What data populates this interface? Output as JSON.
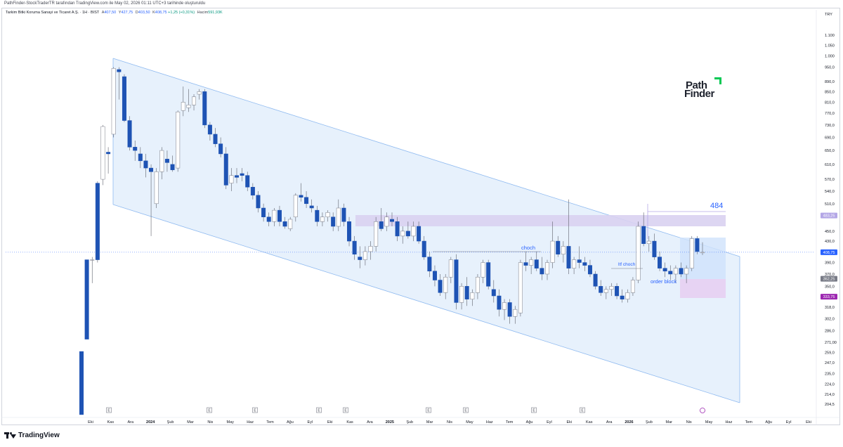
{
  "header": {
    "attribution": "PathFinder-StockTraderTR tarafından TradingView.com ile May 02, 2026 01:11 UTC+3 tarihinde oluşturuldu"
  },
  "legend": {
    "title": "Tarkim Bitki Koruma Sanayi ve Ticaret A.Ş. · 1H · BIST",
    "o_label": "A",
    "o": "407,50",
    "h_label": "Y",
    "h": "427,75",
    "l_label": "D",
    "l": "403,50",
    "c_label": "K",
    "c": "408,75",
    "change": "+1,25 (+0,31%)",
    "vol_label": "Hacim",
    "vol": "591,93K"
  },
  "currency": "TRY",
  "branding": {
    "name": "TradingView",
    "watermark_line1": "Path",
    "watermark_line2": "Finder"
  },
  "colors": {
    "candle_up": "#ffffff",
    "candle_down": "#1e53b4",
    "wick": "#5d606b",
    "channel_fill": "#e3eefb",
    "channel_line": "#8fbaf0",
    "zone_fill": "#d9d1f1",
    "order_block_fill": "#e7d3f3",
    "last_price_badge": "#2962ff",
    "low_badge": "#9c27b0",
    "grey_badge": "#787b86",
    "logo_accent": "#00c853"
  },
  "chart_data": {
    "type": "candlestick",
    "title": "Tarkim Bitki Koruma Sanayi ve Ticaret A.Ş. · 1H · BIST",
    "y_scale": "log",
    "ylim": [
      200,
      1150
    ],
    "y_ticks": [
      "1.100",
      "1.050",
      "1.000",
      "950,0",
      "890,0",
      "850,0",
      "810,0",
      "770,0",
      "730,0",
      "690,0",
      "650,0",
      "610,0",
      "570,0",
      "540,0",
      "510,0",
      "483,25",
      "450,0",
      "430,0",
      "408,75",
      "390,0",
      "370,0",
      "362,25",
      "350,0",
      "333,75",
      "318,0",
      "302,0",
      "286,0",
      "271,00",
      "259,0",
      "247,0",
      "235,0",
      "224,0",
      "214,0",
      "204,5"
    ],
    "x_ticks": [
      "Eki",
      "Kas",
      "Ara",
      "2024",
      "Şub",
      "Mar",
      "Nis",
      "May",
      "Haz",
      "Tem",
      "Ağu",
      "Eyl",
      "Eki",
      "Kas",
      "Ara",
      "2025",
      "Şub",
      "Mar",
      "Nis",
      "May",
      "Haz",
      "Tem",
      "Ağu",
      "Eyl",
      "Eki",
      "Kas",
      "Ara",
      "2026",
      "Şub",
      "Mar",
      "Nis",
      "May",
      "Haz",
      "Tem",
      "Ağu",
      "Eyl",
      "Eki"
    ],
    "bold_x_ticks": [
      "2024",
      "2025",
      "2026"
    ],
    "earnings_markers": [
      "Kas",
      "Mar",
      "Haz",
      "Eyl",
      "Kas",
      "Mar",
      "May",
      "Ağu",
      "Eki"
    ],
    "price_labels": [
      {
        "value": 483.25,
        "text": "483,25",
        "color": "#b4a7e6"
      },
      {
        "value": 408.75,
        "text": "408,75",
        "color": "#2962ff"
      },
      {
        "value": 362.25,
        "text": "362,25",
        "color": "#787b86"
      },
      {
        "value": 333.75,
        "text": "333,75",
        "color": "#9c27b0"
      }
    ],
    "candles": [
      {
        "o": 260,
        "h": 260,
        "l": 195,
        "c": 195
      },
      {
        "o": 395,
        "h": 395,
        "l": 275,
        "c": 275
      },
      {
        "o": 395,
        "h": 400,
        "l": 355,
        "c": 395
      },
      {
        "o": 560,
        "h": 565,
        "l": 390,
        "c": 395
      },
      {
        "o": 570,
        "h": 730,
        "l": 555,
        "c": 725
      },
      {
        "o": 645,
        "h": 660,
        "l": 585,
        "c": 640
      },
      {
        "o": 700,
        "h": 950,
        "l": 690,
        "c": 945
      },
      {
        "o": 940,
        "h": 950,
        "l": 820,
        "c": 930
      },
      {
        "o": 910,
        "h": 920,
        "l": 740,
        "c": 745
      },
      {
        "o": 745,
        "h": 760,
        "l": 650,
        "c": 660
      },
      {
        "o": 660,
        "h": 680,
        "l": 620,
        "c": 650
      },
      {
        "o": 640,
        "h": 660,
        "l": 600,
        "c": 620
      },
      {
        "o": 620,
        "h": 640,
        "l": 575,
        "c": 600
      },
      {
        "o": 600,
        "h": 610,
        "l": 440,
        "c": 590
      },
      {
        "o": 510,
        "h": 600,
        "l": 500,
        "c": 590
      },
      {
        "o": 590,
        "h": 660,
        "l": 570,
        "c": 650
      },
      {
        "o": 625,
        "h": 650,
        "l": 590,
        "c": 615
      },
      {
        "o": 610,
        "h": 635,
        "l": 590,
        "c": 595
      },
      {
        "o": 600,
        "h": 780,
        "l": 590,
        "c": 775
      },
      {
        "o": 780,
        "h": 870,
        "l": 760,
        "c": 810
      },
      {
        "o": 790,
        "h": 860,
        "l": 775,
        "c": 800
      },
      {
        "o": 800,
        "h": 840,
        "l": 780,
        "c": 830
      },
      {
        "o": 840,
        "h": 860,
        "l": 820,
        "c": 850
      },
      {
        "o": 850,
        "h": 860,
        "l": 720,
        "c": 730
      },
      {
        "o": 730,
        "h": 740,
        "l": 680,
        "c": 700
      },
      {
        "o": 700,
        "h": 720,
        "l": 660,
        "c": 670
      },
      {
        "o": 670,
        "h": 690,
        "l": 630,
        "c": 640
      },
      {
        "o": 640,
        "h": 660,
        "l": 545,
        "c": 555
      },
      {
        "o": 560,
        "h": 600,
        "l": 540,
        "c": 580
      },
      {
        "o": 580,
        "h": 600,
        "l": 560,
        "c": 575
      },
      {
        "o": 585,
        "h": 600,
        "l": 565,
        "c": 580
      },
      {
        "o": 580,
        "h": 590,
        "l": 540,
        "c": 550
      },
      {
        "o": 550,
        "h": 560,
        "l": 520,
        "c": 530
      },
      {
        "o": 530,
        "h": 540,
        "l": 490,
        "c": 500
      },
      {
        "o": 500,
        "h": 510,
        "l": 470,
        "c": 480
      },
      {
        "o": 480,
        "h": 490,
        "l": 460,
        "c": 470
      },
      {
        "o": 470,
        "h": 500,
        "l": 460,
        "c": 495
      },
      {
        "o": 495,
        "h": 505,
        "l": 460,
        "c": 470
      },
      {
        "o": 470,
        "h": 480,
        "l": 455,
        "c": 460
      },
      {
        "o": 455,
        "h": 480,
        "l": 450,
        "c": 475
      },
      {
        "o": 480,
        "h": 535,
        "l": 470,
        "c": 530
      },
      {
        "o": 530,
        "h": 560,
        "l": 515,
        "c": 525
      },
      {
        "o": 525,
        "h": 540,
        "l": 500,
        "c": 510
      },
      {
        "o": 505,
        "h": 520,
        "l": 490,
        "c": 500
      },
      {
        "o": 495,
        "h": 505,
        "l": 460,
        "c": 470
      },
      {
        "o": 470,
        "h": 490,
        "l": 460,
        "c": 480
      },
      {
        "o": 480,
        "h": 495,
        "l": 470,
        "c": 490
      },
      {
        "o": 480,
        "h": 490,
        "l": 450,
        "c": 460
      },
      {
        "o": 460,
        "h": 520,
        "l": 450,
        "c": 500
      },
      {
        "o": 500,
        "h": 510,
        "l": 460,
        "c": 470
      },
      {
        "o": 470,
        "h": 480,
        "l": 420,
        "c": 430
      },
      {
        "o": 430,
        "h": 440,
        "l": 395,
        "c": 405
      },
      {
        "o": 400,
        "h": 420,
        "l": 380,
        "c": 395
      },
      {
        "o": 395,
        "h": 420,
        "l": 385,
        "c": 410
      },
      {
        "o": 410,
        "h": 430,
        "l": 395,
        "c": 420
      },
      {
        "o": 420,
        "h": 480,
        "l": 410,
        "c": 470
      },
      {
        "o": 470,
        "h": 500,
        "l": 450,
        "c": 455
      },
      {
        "o": 460,
        "h": 490,
        "l": 450,
        "c": 480
      },
      {
        "o": 475,
        "h": 490,
        "l": 460,
        "c": 470
      },
      {
        "o": 470,
        "h": 480,
        "l": 430,
        "c": 440
      },
      {
        "o": 440,
        "h": 460,
        "l": 425,
        "c": 450
      },
      {
        "o": 450,
        "h": 470,
        "l": 435,
        "c": 440
      },
      {
        "o": 440,
        "h": 470,
        "l": 430,
        "c": 460
      },
      {
        "o": 460,
        "h": 470,
        "l": 425,
        "c": 430
      },
      {
        "o": 430,
        "h": 440,
        "l": 395,
        "c": 400
      },
      {
        "o": 400,
        "h": 410,
        "l": 365,
        "c": 375
      },
      {
        "o": 375,
        "h": 385,
        "l": 350,
        "c": 360
      },
      {
        "o": 360,
        "h": 370,
        "l": 335,
        "c": 340
      },
      {
        "o": 340,
        "h": 370,
        "l": 330,
        "c": 365
      },
      {
        "o": 365,
        "h": 400,
        "l": 355,
        "c": 395
      },
      {
        "o": 395,
        "h": 405,
        "l": 315,
        "c": 325
      },
      {
        "o": 325,
        "h": 355,
        "l": 315,
        "c": 350
      },
      {
        "o": 350,
        "h": 365,
        "l": 320,
        "c": 330
      },
      {
        "o": 330,
        "h": 345,
        "l": 320,
        "c": 340
      },
      {
        "o": 340,
        "h": 370,
        "l": 330,
        "c": 365
      },
      {
        "o": 365,
        "h": 395,
        "l": 355,
        "c": 390
      },
      {
        "o": 390,
        "h": 395,
        "l": 345,
        "c": 350
      },
      {
        "o": 345,
        "h": 360,
        "l": 325,
        "c": 335
      },
      {
        "o": 335,
        "h": 345,
        "l": 305,
        "c": 315
      },
      {
        "o": 315,
        "h": 330,
        "l": 300,
        "c": 325
      },
      {
        "o": 325,
        "h": 330,
        "l": 295,
        "c": 305
      },
      {
        "o": 305,
        "h": 320,
        "l": 295,
        "c": 315
      },
      {
        "o": 310,
        "h": 395,
        "l": 305,
        "c": 390
      },
      {
        "o": 390,
        "h": 410,
        "l": 375,
        "c": 385
      },
      {
        "o": 385,
        "h": 400,
        "l": 370,
        "c": 395
      },
      {
        "o": 395,
        "h": 410,
        "l": 375,
        "c": 380
      },
      {
        "o": 380,
        "h": 400,
        "l": 360,
        "c": 370
      },
      {
        "o": 370,
        "h": 395,
        "l": 360,
        "c": 390
      },
      {
        "o": 390,
        "h": 470,
        "l": 380,
        "c": 430
      },
      {
        "o": 430,
        "h": 440,
        "l": 400,
        "c": 405
      },
      {
        "o": 405,
        "h": 430,
        "l": 390,
        "c": 420
      },
      {
        "o": 420,
        "h": 520,
        "l": 370,
        "c": 380
      },
      {
        "o": 380,
        "h": 400,
        "l": 370,
        "c": 395
      },
      {
        "o": 395,
        "h": 420,
        "l": 380,
        "c": 390
      },
      {
        "o": 390,
        "h": 400,
        "l": 375,
        "c": 385
      },
      {
        "o": 385,
        "h": 395,
        "l": 365,
        "c": 370
      },
      {
        "o": 370,
        "h": 375,
        "l": 345,
        "c": 350
      },
      {
        "o": 350,
        "h": 360,
        "l": 335,
        "c": 340
      },
      {
        "o": 340,
        "h": 350,
        "l": 330,
        "c": 345
      },
      {
        "o": 345,
        "h": 355,
        "l": 335,
        "c": 350
      },
      {
        "o": 350,
        "h": 355,
        "l": 330,
        "c": 335
      },
      {
        "o": 335,
        "h": 345,
        "l": 325,
        "c": 330
      },
      {
        "o": 330,
        "h": 345,
        "l": 325,
        "c": 340
      },
      {
        "o": 340,
        "h": 365,
        "l": 335,
        "c": 360
      },
      {
        "o": 360,
        "h": 470,
        "l": 355,
        "c": 460
      },
      {
        "o": 460,
        "h": 490,
        "l": 420,
        "c": 425
      },
      {
        "o": 425,
        "h": 440,
        "l": 410,
        "c": 430
      },
      {
        "o": 430,
        "h": 445,
        "l": 395,
        "c": 400
      },
      {
        "o": 400,
        "h": 410,
        "l": 375,
        "c": 380
      },
      {
        "o": 380,
        "h": 390,
        "l": 365,
        "c": 375
      },
      {
        "o": 375,
        "h": 385,
        "l": 360,
        "c": 370
      },
      {
        "o": 370,
        "h": 385,
        "l": 355,
        "c": 380
      },
      {
        "o": 380,
        "h": 390,
        "l": 365,
        "c": 370
      },
      {
        "o": 370,
        "h": 385,
        "l": 355,
        "c": 380
      },
      {
        "o": 380,
        "h": 440,
        "l": 375,
        "c": 435
      },
      {
        "o": 435,
        "h": 440,
        "l": 405,
        "c": 410
      },
      {
        "o": 407.5,
        "h": 427.75,
        "l": 403.5,
        "c": 408.75
      }
    ],
    "annotations": [
      {
        "text": "484",
        "type": "target"
      },
      {
        "text": "choch",
        "type": "label"
      },
      {
        "text": "ltf choch",
        "type": "label"
      },
      {
        "text": "order block",
        "type": "label"
      }
    ]
  }
}
